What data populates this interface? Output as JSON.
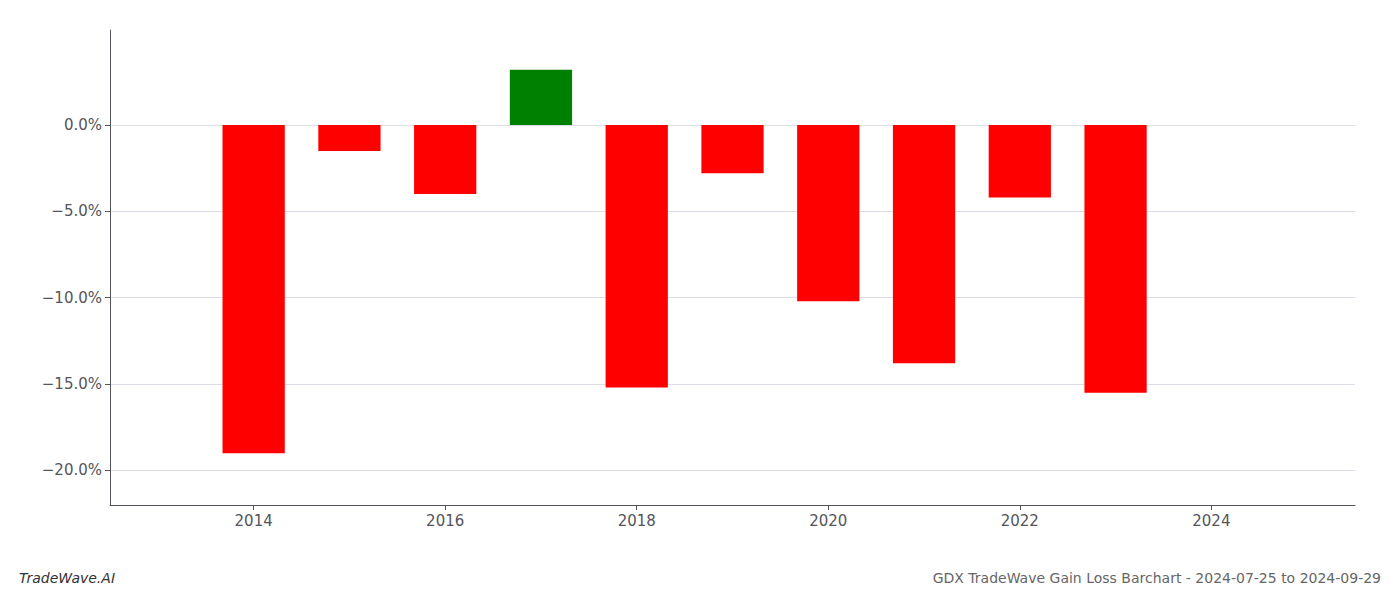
{
  "chart_data": {
    "type": "bar",
    "title": "GDX TradeWave Gain Loss Barchart - 2024-07-25 to 2024-09-29",
    "annotations": [
      "TradeWave.AI"
    ],
    "x": [
      2014,
      2015,
      2016,
      2017,
      2018,
      2019,
      2020,
      2021,
      2022,
      2023
    ],
    "values": [
      -19.0,
      -1.5,
      -4.0,
      3.2,
      -15.2,
      -2.8,
      -10.2,
      -13.8,
      -4.2,
      -15.5
    ],
    "colors": [
      "#ff0000",
      "#ff0000",
      "#ff0000",
      "#008000",
      "#ff0000",
      "#ff0000",
      "#ff0000",
      "#ff0000",
      "#ff0000",
      "#ff0000"
    ],
    "xlim": [
      2012.5,
      2025.5
    ],
    "xticks": [
      2014,
      2016,
      2018,
      2020,
      2022,
      2024
    ],
    "ylim": [
      -22.0,
      5.5
    ],
    "yticks": [
      {
        "value": 0.0,
        "label": "0.0%"
      },
      {
        "value": -5.0,
        "label": "−5.0%"
      },
      {
        "value": -10.0,
        "label": "−10.0%"
      },
      {
        "value": -15.0,
        "label": "−15.0%"
      },
      {
        "value": -20.0,
        "label": "−20.0%"
      }
    ],
    "grid": true
  }
}
